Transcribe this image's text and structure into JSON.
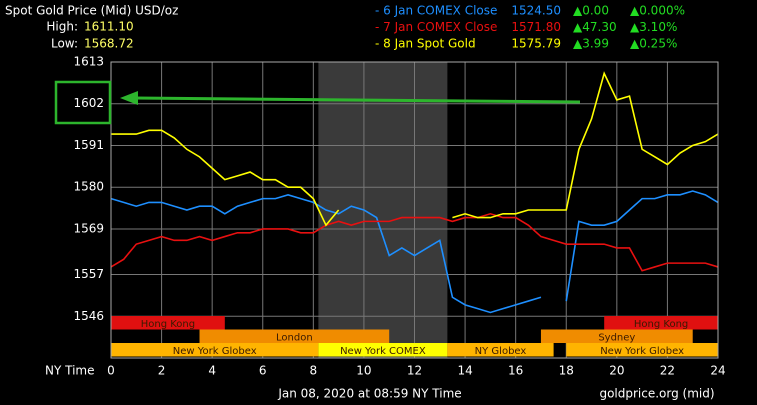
{
  "chart_data": {
    "type": "line",
    "title": "Spot Gold Price (Mid) USD/oz",
    "high": {
      "label": "High:",
      "value": "1611.10"
    },
    "low": {
      "label": "Low:",
      "value": "1568.72"
    },
    "xlabel": "NY Time",
    "footer": "Jan 08, 2020 at 08:59 NY Time",
    "source": "goldprice.org (mid)",
    "xlim": [
      0,
      24
    ],
    "ylim": [
      1535,
      1613
    ],
    "xticks": [
      0,
      2,
      4,
      6,
      8,
      10,
      12,
      14,
      16,
      18,
      20,
      22,
      24
    ],
    "yticks": [
      1613,
      1602,
      1591,
      1580,
      1569,
      1557,
      1546
    ],
    "grid": true,
    "shaded": [
      8.2,
      13.3
    ],
    "x": [
      0,
      0.5,
      1,
      1.5,
      2,
      2.5,
      3,
      3.5,
      4,
      4.5,
      5,
      5.5,
      6,
      6.5,
      7,
      7.5,
      8,
      8.5,
      9,
      9.5,
      10,
      10.5,
      11,
      11.5,
      12,
      12.5,
      13,
      13.5,
      14,
      14.5,
      15,
      15.5,
      16,
      16.5,
      17,
      17.5,
      18,
      18.5,
      19,
      19.5,
      20,
      20.5,
      21,
      21.5,
      22,
      22.5,
      23,
      23.5,
      24
    ],
    "series": [
      {
        "name": "- 6 Jan COMEX Close",
        "color": "#1e8fff",
        "last": "1524.50",
        "change": "▲0.00",
        "change_pct": "▲0.000%",
        "values": [
          1577,
          1576,
          1575,
          1576,
          1576,
          1575,
          1574,
          1575,
          1575,
          1573,
          1575,
          1576,
          1577,
          1577,
          1578,
          1577,
          1576,
          1574,
          1573,
          1575,
          1574,
          1572,
          1562,
          1564,
          1562,
          1564,
          1566,
          1551,
          1549,
          1548,
          1547,
          1548,
          1549,
          1550,
          1551,
          null,
          1550,
          1571,
          1570,
          1570,
          1571,
          1574,
          1577,
          1577,
          1578,
          1578,
          1579,
          1578,
          1576
        ]
      },
      {
        "name": "- 7 Jan COMEX Close",
        "color": "#e81010",
        "last": "1571.80",
        "change": "▲47.30",
        "change_pct": "▲3.10%",
        "values": [
          1559,
          1561,
          1565,
          1566,
          1567,
          1566,
          1566,
          1567,
          1566,
          1567,
          1568,
          1568,
          1569,
          1569,
          1569,
          1568,
          1568,
          1570,
          1571,
          1570,
          1571,
          1571,
          1571,
          1572,
          1572,
          1572,
          1572,
          1571,
          1572,
          1572,
          1573,
          1572,
          1572,
          1570,
          1567,
          1566,
          1565,
          1565,
          1565,
          1565,
          1564,
          1564,
          1558,
          1559,
          1560,
          1560,
          1560,
          1560,
          1559
        ]
      },
      {
        "name": "- 8 Jan Spot Gold",
        "color": "#ffff00",
        "last": "1575.79",
        "change": "▲3.99",
        "change_pct": "▲0.25%",
        "values": [
          1594,
          1594,
          1594,
          1595,
          1595,
          1593,
          1590,
          1588,
          1585,
          1582,
          1583,
          1584,
          1582,
          1582,
          1580,
          1580,
          1577,
          1570,
          1574,
          null,
          null,
          null,
          null,
          null,
          null,
          null,
          null,
          1572,
          1573,
          1572,
          1572,
          1573,
          1573,
          1574,
          1574,
          1574,
          1574,
          1590,
          1598,
          1610,
          1603,
          1604,
          1590,
          1588,
          1586,
          1589,
          1591,
          1592,
          1594
        ]
      }
    ],
    "sessions": [
      {
        "label": "Hong Kong",
        "start": 0,
        "end": 4.5,
        "row": 0,
        "color": "#e01010"
      },
      {
        "label": "Hong Kong",
        "start": 19.5,
        "end": 24,
        "row": 0,
        "color": "#e01010"
      },
      {
        "label": "London",
        "start": 3.5,
        "end": 11,
        "row": 1,
        "color": "#f08c00"
      },
      {
        "label": "Sydney",
        "start": 17,
        "end": 23,
        "row": 1,
        "color": "#f08c00"
      },
      {
        "label": "New York Globex",
        "start": 0,
        "end": 8.2,
        "row": 2,
        "color": "#ffb400"
      },
      {
        "label": "New York COMEX",
        "start": 8.2,
        "end": 13.3,
        "row": 2,
        "color": "#ffff00"
      },
      {
        "label": "NY Globex",
        "start": 13.3,
        "end": 17.5,
        "row": 2,
        "color": "#ffb400"
      },
      {
        "label": "New York Globex",
        "start": 18,
        "end": 24,
        "row": 2,
        "color": "#ffb400"
      }
    ]
  }
}
